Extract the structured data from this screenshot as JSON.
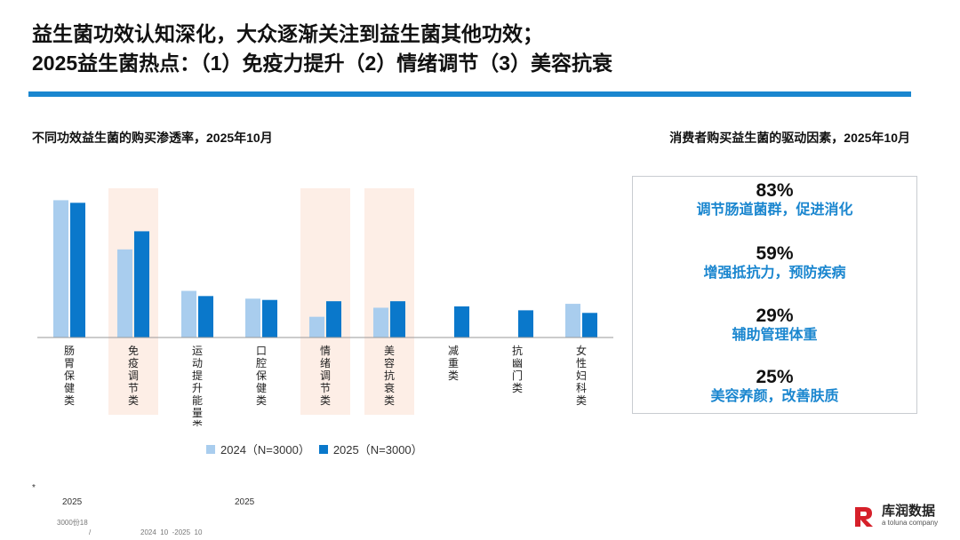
{
  "header": {
    "title_line1": "益生菌功效认知深化，大众逐渐关注到益生菌其他功效；",
    "title_line2": "2025益生菌热点：（1）免疫力提升（2）情绪调节（3）美容抗衰"
  },
  "colors": {
    "accent": "#1a86cf",
    "series_2024": "#a9cdee",
    "series_2025": "#0a78cb",
    "highlight": "#fdeee6",
    "driver_label": "#1a86cf"
  },
  "chart_data": {
    "type": "bar",
    "title": "不同功效益生菌的购买渗透率，2025年10月",
    "categories": [
      "肠胃保健类",
      "免疫调节类",
      "运动提升能量类",
      "口腔保健类",
      "情绪调节类",
      "美容抗衰类",
      "减重类",
      "抗幽门类",
      "女性妇科类"
    ],
    "highlighted": [
      "免疫调节类",
      "情绪调节类",
      "美容抗衰类"
    ],
    "series": [
      {
        "name": "2024（N=3000）",
        "values": [
          53,
          34,
          18,
          15,
          8,
          11.5,
          null,
          null,
          13
        ]
      },
      {
        "name": "2025（N=3000）",
        "values": [
          52,
          41,
          16,
          14.5,
          14,
          14,
          12,
          10.5,
          9.5
        ]
      }
    ],
    "ylim": [
      0,
      60
    ],
    "xlabel": "",
    "ylabel": "",
    "grid": false,
    "legend": "bottom"
  },
  "drivers": {
    "subtitle": "消费者购买益生菌的驱动因素，2025年10月",
    "items": [
      {
        "pct": "83%",
        "label": "调节肠道菌群，促进消化"
      },
      {
        "pct": "59%",
        "label": "增强抵抗力，预防疾病"
      },
      {
        "pct": "29%",
        "label": "辅助管理体重"
      },
      {
        "pct": "25%",
        "label": "美容养颜，改善肤质"
      }
    ]
  },
  "footnotes": {
    "star": "*",
    "year_a": "2025",
    "year_b": "2025",
    "sample": "3000份18",
    "slash": "/",
    "period": "2024  10  -2025  10"
  },
  "brand": {
    "name": "库润数据",
    "sub": "a toluna company"
  }
}
